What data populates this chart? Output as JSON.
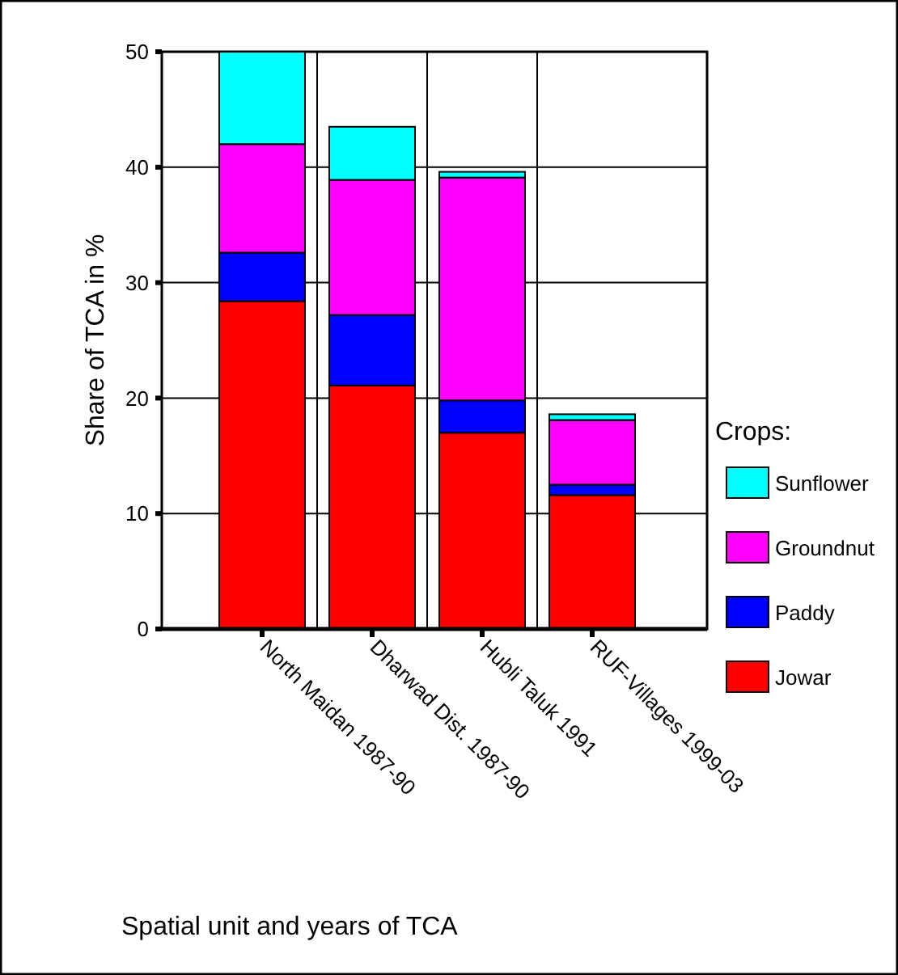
{
  "chart_data": {
    "type": "bar",
    "stacked": true,
    "ylabel": "Share of TCA in %",
    "xlabel": "Spatial unit and years of TCA",
    "legend_title": "Crops:",
    "legend": "right",
    "categories": [
      "North Maidan 1987-90",
      "Dharwad Dist. 1987-90",
      "Hubli Taluk 1991",
      "RUF-Villages 1999-03"
    ],
    "series": [
      {
        "name": "Jowar",
        "color": "#ff0000",
        "values": [
          28.4,
          21.1,
          17,
          11.6
        ]
      },
      {
        "name": "Paddy",
        "color": "#0000ff",
        "values": [
          4.2,
          6.1,
          2.8,
          0.9
        ]
      },
      {
        "name": "Groundnut",
        "color": "#ff00ff",
        "values": [
          9.4,
          11.7,
          19.3,
          5.6
        ]
      },
      {
        "name": "Sunflower",
        "color": "#00ffff",
        "values": [
          8,
          4.6,
          0.5,
          0.5
        ]
      }
    ],
    "ylim": [
      0,
      50
    ],
    "yticks": [
      0,
      10,
      20,
      30,
      40,
      50
    ],
    "grid": true
  }
}
